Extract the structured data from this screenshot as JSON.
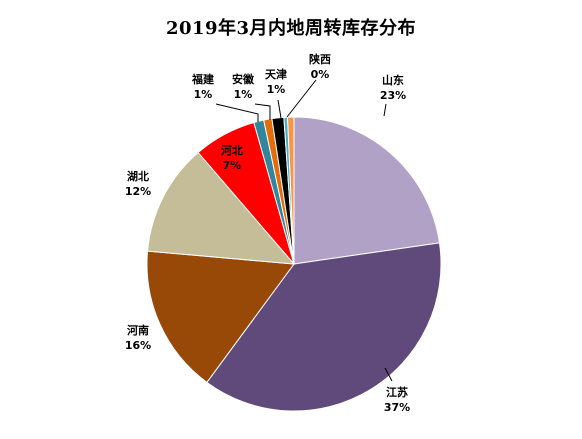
{
  "title": "2019年3月内地周转库存分布",
  "chart_data": {
    "type": "pie",
    "title": "2019年3月内地周转库存分布",
    "start_angle_deg": 0,
    "direction": "clockwise",
    "slices": [
      {
        "name": "山东",
        "value": 22.7,
        "label": "23%",
        "color": "#B2A1C7"
      },
      {
        "name": "江苏",
        "value": 37.4,
        "label": "37%",
        "color": "#604A7B"
      },
      {
        "name": "河南",
        "value": 16.3,
        "label": "16%",
        "color": "#984807"
      },
      {
        "name": "湖北",
        "value": 12.3,
        "label": "12%",
        "color": "#C4BD97"
      },
      {
        "name": "河北",
        "value": 6.9,
        "label": "7%",
        "color": "#FF0000"
      },
      {
        "name": "福建",
        "value": 1.1,
        "label": "1%",
        "color": "#31859C"
      },
      {
        "name": "安徽",
        "value": 0.9,
        "label": "1%",
        "color": "#E46C0A"
      },
      {
        "name": "天津",
        "value": 1.3,
        "label": "1%",
        "color": "#000000"
      },
      {
        "name": "陕西",
        "value": 0.4,
        "label": "0%",
        "color": "#4BACC6"
      },
      {
        "name": "",
        "value": 0.7,
        "label": "",
        "color": "#F79646"
      }
    ]
  }
}
